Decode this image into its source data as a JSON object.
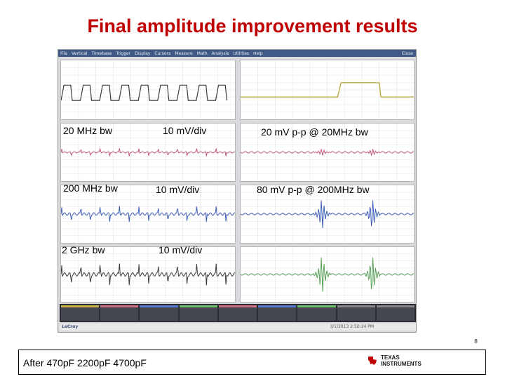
{
  "slide": {
    "title": "Final amplitude improvement results",
    "page_number": "8",
    "footer_caption": "After 470pF 2200pF 4700pF",
    "brand_logo": {
      "line1": "TEXAS",
      "line2": "INSTRUMENTS",
      "icon": "texas-state-icon",
      "color": "#c00000"
    }
  },
  "scope": {
    "menu": [
      "File",
      "Vertical",
      "Timebase",
      "Trigger",
      "Display",
      "Cursors",
      "Measure",
      "Math",
      "Analysis",
      "Utilities",
      "Help"
    ],
    "close_label": "Close",
    "brand": "LeCroy",
    "timestamp": "3/1/2013 2:50:24 PM",
    "trace_colors": {
      "c1": "#b8a43a",
      "c2": "#c0557a",
      "c3": "#3d5fb8",
      "c4": "#55a055",
      "dark": "#3a3a3a"
    }
  },
  "labels": {
    "row1": {
      "bw": "20 MHz bw",
      "scale": "10 mV/div",
      "result": "20 mV p-p @ 20MHz bw"
    },
    "row2": {
      "bw": "200 MHz bw",
      "scale": "10 mV/div",
      "result": "80 mV p-p @ 200MHz bw"
    },
    "row3": {
      "bw": "2 GHz bw",
      "scale": "10 mV/div"
    }
  }
}
